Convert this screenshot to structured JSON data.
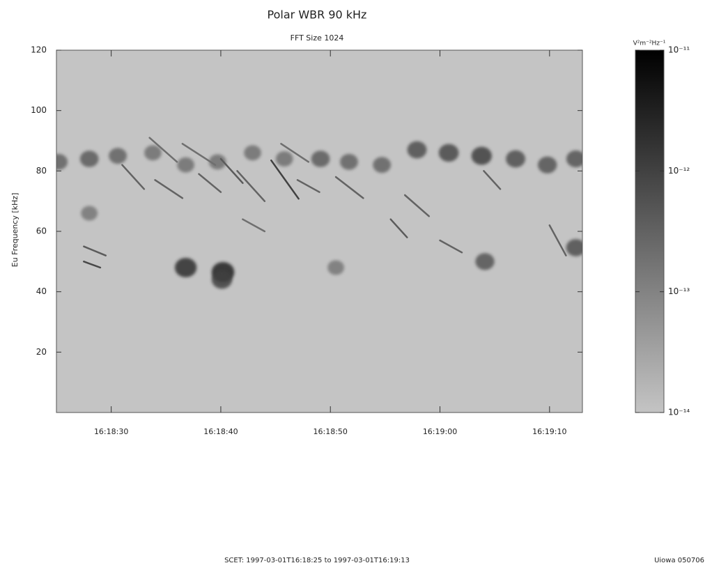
{
  "chart_data": {
    "type": "spectrogram",
    "title": "Polar WBR 90 kHz",
    "subtitle": "FFT Size 1024",
    "ylabel": "Eu Frequency [kHz]",
    "colorbar_label": "V²m⁻²Hz⁻¹",
    "footer": "SCET:  1997-03-01T16:18:25   to   1997-03-01T16:19:13",
    "credit": "Uiowa 050706",
    "xlim": [
      "16:18:25",
      "16:19:13"
    ],
    "xticks": [
      "16:18:30",
      "16:18:40",
      "16:18:50",
      "16:19:00",
      "16:19:10"
    ],
    "ylim": [
      0,
      120
    ],
    "yticks": [
      20,
      40,
      60,
      80,
      100,
      120
    ],
    "zscale": "log",
    "zlim": [
      1e-14,
      1e-11
    ],
    "zticks": [
      {
        "value": 1e-11,
        "label": "10⁻¹¹"
      },
      {
        "value": 1e-12,
        "label": "10⁻¹²"
      },
      {
        "value": 1e-13,
        "label": "10⁻¹³"
      },
      {
        "value": 1e-14,
        "label": "10⁻¹⁴"
      }
    ],
    "colors": [
      "#c4c4c4",
      "#000000"
    ],
    "blobs": [
      {
        "t": "16:18:25.2",
        "f": 83,
        "z": 3e-13
      },
      {
        "t": "16:18:28.0",
        "f": 84,
        "z": 4e-13
      },
      {
        "t": "16:18:30.6",
        "f": 85,
        "z": 3e-13
      },
      {
        "t": "16:18:33.8",
        "f": 86,
        "z": 2e-13
      },
      {
        "t": "16:18:36.8",
        "f": 82,
        "z": 2e-13
      },
      {
        "t": "16:18:39.7",
        "f": 83,
        "z": 2e-13
      },
      {
        "t": "16:18:42.9",
        "f": 86,
        "z": 2e-13
      },
      {
        "t": "16:18:45.8",
        "f": 84,
        "z": 2e-13
      },
      {
        "t": "16:18:49.1",
        "f": 84,
        "z": 4e-13
      },
      {
        "t": "16:18:51.7",
        "f": 83,
        "z": 3e-13
      },
      {
        "t": "16:18:54.7",
        "f": 82,
        "z": 3e-13
      },
      {
        "t": "16:18:57.9",
        "f": 87,
        "z": 6e-13
      },
      {
        "t": "16:19:00.8",
        "f": 86,
        "z": 8e-13
      },
      {
        "t": "16:19:03.8",
        "f": 85,
        "z": 1e-12
      },
      {
        "t": "16:19:06.9",
        "f": 84,
        "z": 6e-13
      },
      {
        "t": "16:19:09.8",
        "f": 82,
        "z": 5e-13
      },
      {
        "t": "16:19:12.4",
        "f": 84,
        "z": 5e-13
      },
      {
        "t": "16:18:28.0",
        "f": 66,
        "z": 1.5e-13
      },
      {
        "t": "16:18:50.5",
        "f": 48,
        "z": 1.5e-13
      },
      {
        "t": "16:19:04.1",
        "f": 50,
        "z": 5e-13
      },
      {
        "t": "16:19:12.4",
        "f": 54.6,
        "z": 6e-13
      },
      {
        "t": "16:18:36.8",
        "f": 48,
        "z": 2e-12
      },
      {
        "t": "16:18:40.2",
        "f": 46.5,
        "z": 3e-12
      },
      {
        "t": "16:18:40.1",
        "f": 44,
        "z": 1e-12
      }
    ],
    "streaks": [
      {
        "t": [
          "16:18:31.0",
          "16:18:33.0"
        ],
        "f": [
          82,
          74
        ],
        "z": 3e-13
      },
      {
        "t": [
          "16:18:33.5",
          "16:18:36.0"
        ],
        "f": [
          91,
          83
        ],
        "z": 2e-13
      },
      {
        "t": [
          "16:18:34.0",
          "16:18:36.5"
        ],
        "f": [
          77,
          71
        ],
        "z": 3e-13
      },
      {
        "t": [
          "16:18:36.5",
          "16:18:39.5"
        ],
        "f": [
          89,
          82
        ],
        "z": 2e-13
      },
      {
        "t": [
          "16:18:38.0",
          "16:18:40.0"
        ],
        "f": [
          79,
          73
        ],
        "z": 3e-13
      },
      {
        "t": [
          "16:18:40.0",
          "16:18:42.0"
        ],
        "f": [
          84,
          76
        ],
        "z": 4e-13
      },
      {
        "t": [
          "16:18:41.5",
          "16:18:44.0"
        ],
        "f": [
          80,
          70
        ],
        "z": 3e-13
      },
      {
        "t": [
          "16:18:44.6",
          "16:18:47.1"
        ],
        "f": [
          83.5,
          70.8
        ],
        "z": 1e-12
      },
      {
        "t": [
          "16:18:45.5",
          "16:18:48.0"
        ],
        "f": [
          89,
          83
        ],
        "z": 2e-13
      },
      {
        "t": [
          "16:18:47.0",
          "16:18:49.0"
        ],
        "f": [
          77,
          73
        ],
        "z": 3e-13
      },
      {
        "t": [
          "16:18:50.5",
          "16:18:53.0"
        ],
        "f": [
          78,
          71
        ],
        "z": 3e-13
      },
      {
        "t": [
          "16:18:55.5",
          "16:18:57.0"
        ],
        "f": [
          64,
          58
        ],
        "z": 4e-13
      },
      {
        "t": [
          "16:18:56.8",
          "16:18:59.0"
        ],
        "f": [
          72,
          65
        ],
        "z": 3e-13
      },
      {
        "t": [
          "16:19:00.0",
          "16:19:02.0"
        ],
        "f": [
          57,
          53
        ],
        "z": 3e-13
      },
      {
        "t": [
          "16:19:04.0",
          "16:19:05.5"
        ],
        "f": [
          80,
          74
        ],
        "z": 3e-13
      },
      {
        "t": [
          "16:18:27.5",
          "16:18:29.5"
        ],
        "f": [
          55,
          52
        ],
        "z": 4e-13
      },
      {
        "t": [
          "16:18:27.5",
          "16:18:29.0"
        ],
        "f": [
          50,
          48
        ],
        "z": 8e-13
      },
      {
        "t": [
          "16:19:10.0",
          "16:19:11.5"
        ],
        "f": [
          62,
          52
        ],
        "z": 3e-13
      },
      {
        "t": [
          "16:18:42.0",
          "16:18:44.0"
        ],
        "f": [
          64,
          60
        ],
        "z": 2e-13
      }
    ]
  }
}
